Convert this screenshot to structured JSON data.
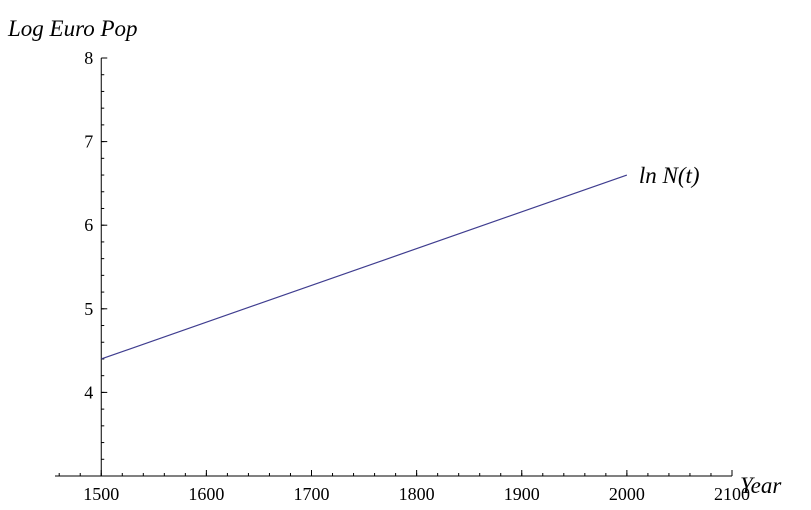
{
  "chart_data": {
    "type": "line",
    "x_label": "Year",
    "y_label": "Log Euro Pop",
    "x": [
      1500,
      2000
    ],
    "series": [
      {
        "name": "ln N(t)",
        "color": "#3f3d8f",
        "values": [
          4.4,
          6.6
        ]
      }
    ],
    "xlim": [
      1456,
      2100
    ],
    "xticks": [
      1500,
      1600,
      1700,
      1800,
      1900,
      2000,
      2100
    ],
    "ylim": [
      3,
      8
    ],
    "yticks": [
      4,
      5,
      6,
      7,
      8
    ]
  }
}
